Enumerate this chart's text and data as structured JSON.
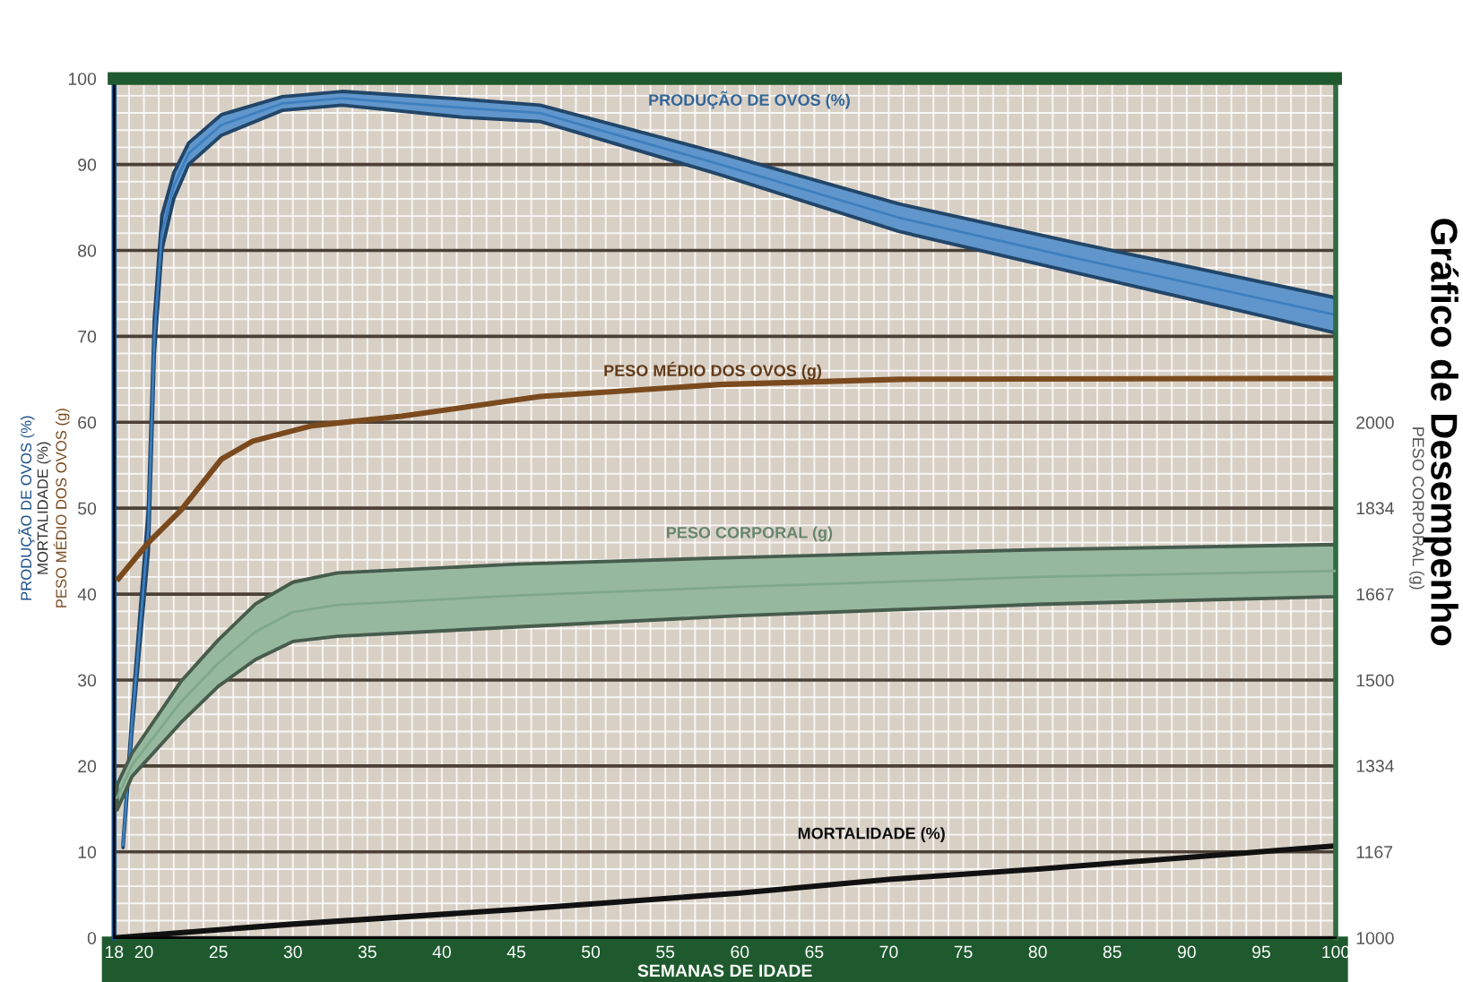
{
  "chart_data": {
    "type": "line",
    "title": "Gráfico de Desempenho",
    "xlabel": "SEMANAS DE IDADE",
    "ylabel": "PRODUÇÃO DE OVOS (%)\nMORTALIDADE (%)\nPESO MÉDIO DOS OVOS (g)",
    "y2label": "PESO CORPORAL (g)",
    "xlim": [
      18,
      100
    ],
    "xticks": [
      18,
      20,
      25,
      30,
      35,
      40,
      45,
      50,
      55,
      60,
      65,
      70,
      75,
      80,
      85,
      90,
      95,
      100
    ],
    "ylim": [
      0,
      100
    ],
    "yticks": [
      0,
      10,
      20,
      30,
      40,
      50,
      60,
      70,
      80,
      90,
      100
    ],
    "y2lim": [
      1000,
      2667
    ],
    "y2ticks": [
      1000,
      1167,
      1334,
      1500,
      1667,
      1834,
      2000
    ],
    "grid": true,
    "series": [
      {
        "name": "PRODUÇÃO DE OVOS (%)",
        "type": "line",
        "color": "#3d7fbf",
        "x": [
          18.6,
          19.2,
          20.3,
          20.7,
          21.2,
          22,
          23,
          25.2,
          29.3,
          33.3,
          41.4,
          46.6,
          58.7,
          70.7,
          82.8,
          100
        ],
        "values": [
          10.8,
          25,
          47.5,
          70,
          82,
          87.5,
          91.3,
          94.6,
          97.1,
          97.7,
          96.6,
          96,
          90,
          83.8,
          79,
          72.5
        ],
        "lower": [
          10.5,
          24,
          45,
          68,
          80,
          86,
          90,
          93.4,
          96.3,
          96.9,
          95.5,
          95,
          88.8,
          82.2,
          77.3,
          70.4
        ],
        "upper": [
          11,
          26,
          50,
          72,
          84,
          89,
          92.5,
          95.8,
          97.9,
          98.5,
          97.6,
          96.9,
          91.3,
          85.4,
          80.8,
          74.5
        ]
      },
      {
        "name": "PESO MÉDIO DOS OVOS (g)",
        "type": "line",
        "color": "#7a4a1e",
        "x": [
          18.3,
          20.3,
          22.5,
          25.2,
          27.3,
          31.3,
          37.3,
          46.6,
          58.7,
          70.7,
          100
        ],
        "values": [
          41.8,
          46,
          49.8,
          55.7,
          57.8,
          59.6,
          60.7,
          63,
          64.4,
          65,
          65.1
        ]
      },
      {
        "name": "PESO CORPORAL (g)",
        "type": "line",
        "axis": "y2",
        "color": "#7fa88a",
        "x": [
          18.2,
          19.2,
          22.5,
          25,
          27.5,
          30,
          33,
          45,
          60,
          80,
          100
        ],
        "values": [
          1272,
          1335,
          1458,
          1533,
          1594,
          1632,
          1646,
          1664,
          1681,
          1700,
          1712
        ],
        "lower": [
          1248,
          1313,
          1418,
          1488,
          1540,
          1575,
          1585,
          1603,
          1625,
          1647,
          1662
        ],
        "upper": [
          1297,
          1358,
          1498,
          1578,
          1648,
          1690,
          1708,
          1725,
          1738,
          1753,
          1763
        ]
      },
      {
        "name": "MORTALIDADE (%)",
        "type": "line",
        "color": "#111111",
        "x": [
          18,
          30,
          45,
          60,
          70,
          80,
          100
        ],
        "values": [
          0,
          1.6,
          3.3,
          5.2,
          6.8,
          8,
          10.7
        ]
      }
    ]
  }
}
